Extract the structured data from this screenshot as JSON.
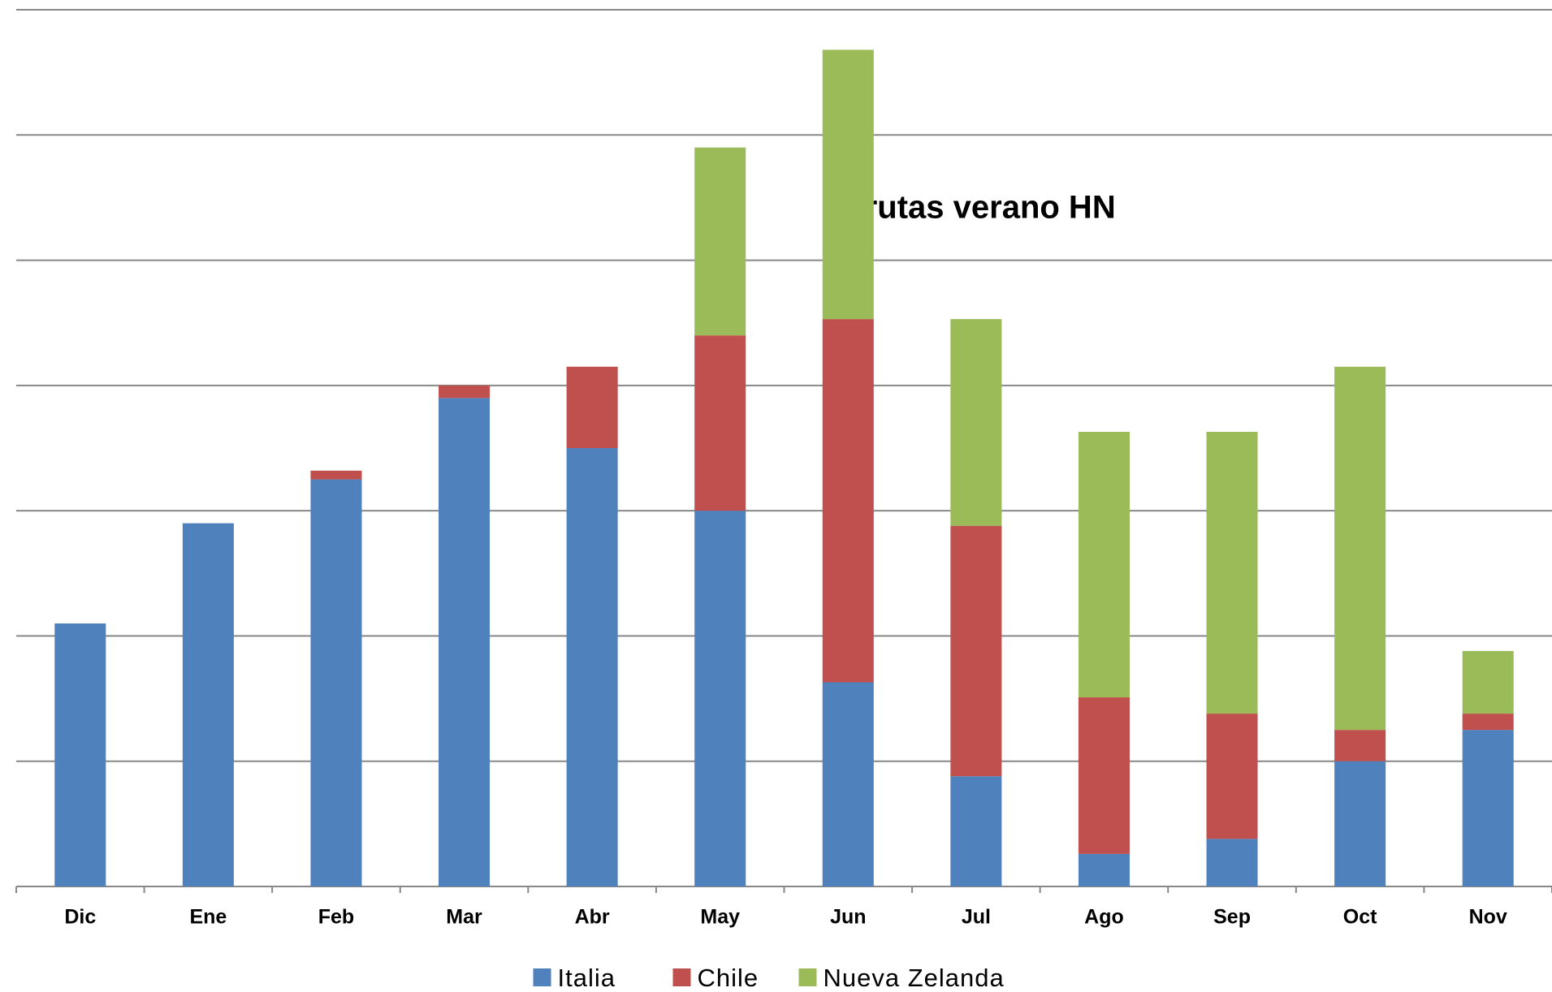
{
  "chart_data": {
    "type": "stacked_bar",
    "title": "Frutas verano HN",
    "categories": [
      "Dic",
      "Ene",
      "Feb",
      "Mar",
      "Abr",
      "May",
      "Jun",
      "Jul",
      "Ago",
      "Sep",
      "Oct",
      "Nov"
    ],
    "series": [
      {
        "name": "Italia",
        "color": "#4f81bd",
        "values": [
          2.1,
          2.9,
          3.25,
          3.9,
          3.5,
          3.0,
          1.63,
          0.88,
          0.26,
          0.38,
          1.0,
          1.25
        ]
      },
      {
        "name": "Chile",
        "color": "#c0504d",
        "values": [
          null,
          null,
          0.07,
          0.1,
          0.65,
          1.4,
          2.9,
          2.0,
          1.25,
          1.0,
          0.25,
          0.13
        ]
      },
      {
        "name": "Nueva Zelanda",
        "color": "#9bbb59",
        "values": [
          null,
          null,
          null,
          null,
          null,
          1.5,
          2.15,
          1.65,
          2.12,
          2.25,
          2.9,
          0.5
        ]
      }
    ],
    "ylim": [
      0,
      7
    ],
    "yticks": [
      0,
      1,
      2,
      3,
      4,
      5,
      6,
      7
    ],
    "grid": true,
    "legend": "bottom"
  }
}
